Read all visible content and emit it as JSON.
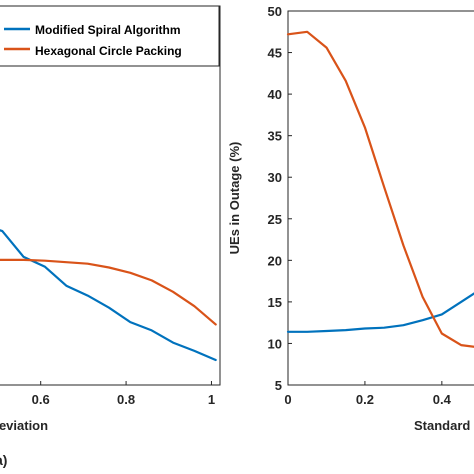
{
  "chart_data": [
    {
      "panel_label": "a)",
      "type": "line",
      "xlabel": "d Deviation",
      "ylabel": "",
      "xlim": [
        0.5,
        1.02
      ],
      "ylim": [
        0,
        50
      ],
      "xticks": [
        "0.6",
        "0.8",
        "1"
      ],
      "legend": {
        "placement": "top-right"
      },
      "series": [
        {
          "name": "Modified Spiral Algorithm",
          "color": "#0072BD",
          "x": [
            0.5,
            0.51,
            0.56,
            0.61,
            0.66,
            0.71,
            0.76,
            0.81,
            0.86,
            0.91,
            0.96,
            1.01
          ],
          "y": [
            20.5,
            20.3,
            16.9,
            15.6,
            13.1,
            11.8,
            10.2,
            8.3,
            7.2,
            5.6,
            4.5,
            3.3
          ]
        },
        {
          "name": "Hexagonal Circle Packing",
          "color": "#D95319",
          "x": [
            0.5,
            0.56,
            0.61,
            0.66,
            0.71,
            0.76,
            0.81,
            0.86,
            0.91,
            0.96,
            1.01
          ],
          "y": [
            16.5,
            16.5,
            16.4,
            16.2,
            16.0,
            15.5,
            14.8,
            13.8,
            12.3,
            10.4,
            8.0
          ]
        }
      ]
    },
    {
      "type": "line",
      "xlabel": "Standard Deviation",
      "ylabel": "UEs in Outage (%)",
      "xlim": [
        0,
        0.52
      ],
      "ylim": [
        5,
        50
      ],
      "xticks": [
        "0",
        "0.2",
        "0.4"
      ],
      "yticks": [
        "5",
        "10",
        "15",
        "20",
        "25",
        "30",
        "35",
        "40",
        "45",
        "50"
      ],
      "series": [
        {
          "color": "#0072BD",
          "x": [
            0,
            0.05,
            0.1,
            0.15,
            0.2,
            0.25,
            0.3,
            0.35,
            0.4,
            0.45,
            0.5
          ],
          "y": [
            11.4,
            11.4,
            11.5,
            11.6,
            11.8,
            11.9,
            12.2,
            12.8,
            13.5,
            15.0,
            16.5
          ]
        },
        {
          "color": "#D95319",
          "x": [
            0,
            0.05,
            0.1,
            0.15,
            0.2,
            0.25,
            0.3,
            0.35,
            0.4,
            0.45,
            0.5
          ],
          "y": [
            47.2,
            47.5,
            45.6,
            41.6,
            36.0,
            28.8,
            21.8,
            15.6,
            11.2,
            9.8,
            9.5
          ]
        }
      ]
    }
  ]
}
